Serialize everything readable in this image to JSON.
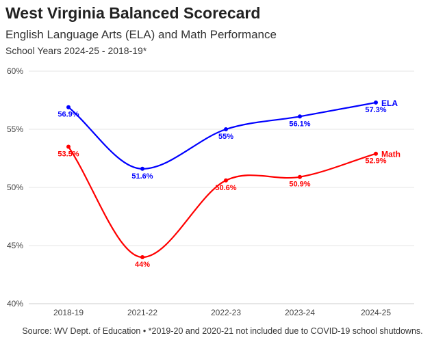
{
  "title": "West Virginia Balanced Scorecard",
  "subtitle": "English Language Arts (ELA) and Math Performance",
  "subtitle2": "School Years 2024-25 - 2018-19*",
  "source": "Source: WV Dept. of Education • *2019-20 and 2020-21 not included due to COVID-19 school shutdowns.",
  "chart_data": {
    "type": "line",
    "categories": [
      "2018-19",
      "2021-22",
      "2022-23",
      "2023-24",
      "2024-25"
    ],
    "series": [
      {
        "name": "ELA",
        "color": "#0000ff",
        "values": [
          56.9,
          51.6,
          55,
          56.1,
          57.3
        ],
        "labels": [
          "56.9%",
          "51.6%",
          "55%",
          "56.1%",
          "57.3%"
        ]
      },
      {
        "name": "Math",
        "color": "#ff0000",
        "values": [
          53.5,
          44,
          50.6,
          50.9,
          52.9
        ],
        "labels": [
          "53.5%",
          "44%",
          "50.6%",
          "50.9%",
          "52.9%"
        ]
      }
    ],
    "ylim": [
      40,
      60
    ],
    "yticks": [
      40,
      45,
      50,
      55,
      60
    ],
    "ytick_labels": [
      "40%",
      "45%",
      "50%",
      "55%",
      "60%"
    ],
    "grid": true,
    "xlabel": "",
    "ylabel": ""
  }
}
